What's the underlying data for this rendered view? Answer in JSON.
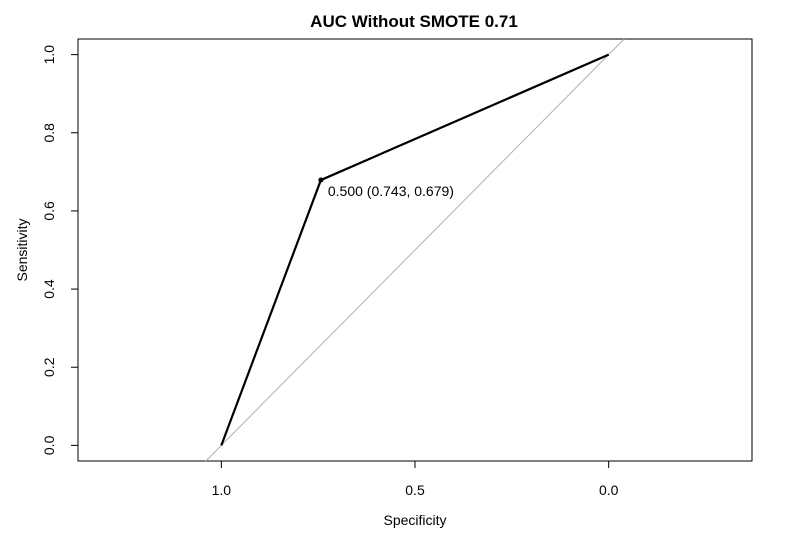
{
  "chart_data": {
    "type": "line",
    "title": "AUC Without SMOTE 0.71",
    "xlabel": "Specificity",
    "ylabel": "Sensitivity",
    "xlim": [
      1.37,
      -0.37
    ],
    "ylim": [
      -0.04,
      1.04
    ],
    "x_ticks": [
      {
        "value": 1.0,
        "label": "1.0"
      },
      {
        "value": 0.5,
        "label": "0.5"
      },
      {
        "value": 0.0,
        "label": "0.0"
      }
    ],
    "y_ticks": [
      {
        "value": 0.0,
        "label": "0.0"
      },
      {
        "value": 0.2,
        "label": "0.2"
      },
      {
        "value": 0.4,
        "label": "0.4"
      },
      {
        "value": 0.6,
        "label": "0.6"
      },
      {
        "value": 0.8,
        "label": "0.8"
      },
      {
        "value": 1.0,
        "label": "1.0"
      }
    ],
    "series": [
      {
        "points": [
          {
            "specificity": 1.0,
            "sensitivity": 0.0
          },
          {
            "specificity": 0.743,
            "sensitivity": 0.679
          },
          {
            "specificity": 0.0,
            "sensitivity": 1.0
          }
        ],
        "color": "#000000"
      }
    ],
    "reference_line": {
      "points": [
        {
          "specificity": 1.04,
          "sensitivity": -0.04
        },
        {
          "specificity": -0.04,
          "sensitivity": 1.04
        }
      ],
      "color": "#b0b0b0"
    },
    "threshold_point": {
      "specificity": 0.743,
      "sensitivity": 0.679,
      "label": "0.500 (0.743, 0.679)"
    },
    "grid": false
  }
}
